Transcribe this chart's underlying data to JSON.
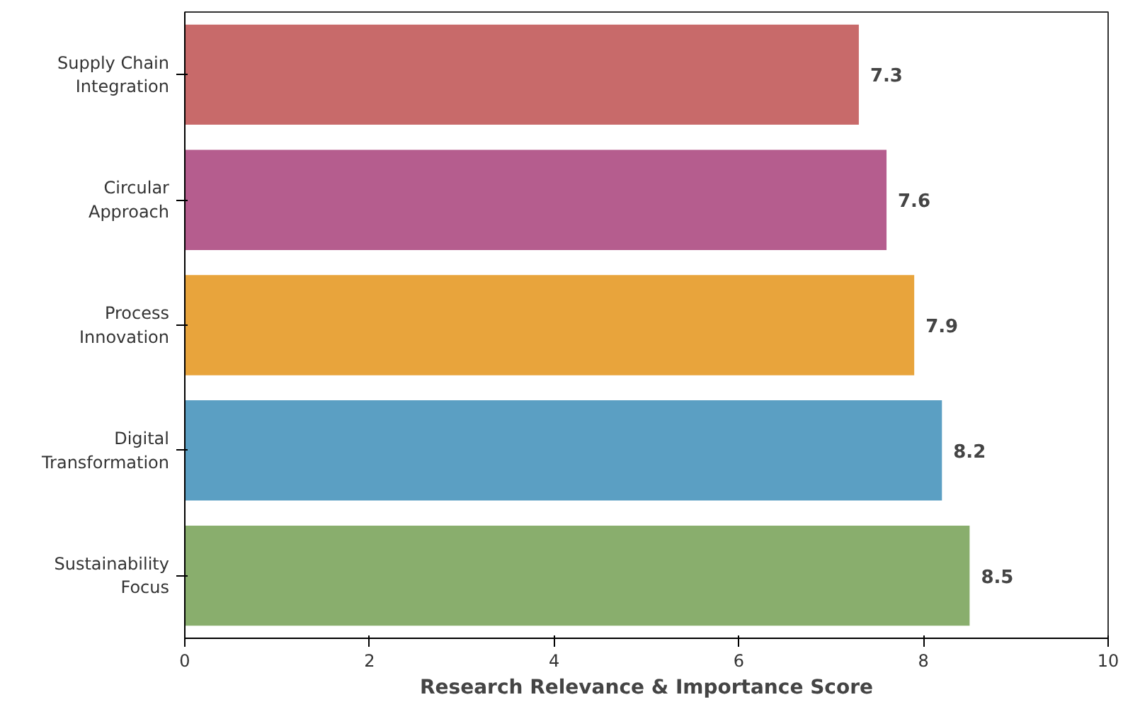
{
  "chart_data": {
    "type": "bar",
    "orientation": "horizontal",
    "xlabel": "Research Relevance & Importance Score",
    "categories": [
      "Supply Chain\nIntegration",
      "Circular\nApproach",
      "Process\nInnovation",
      "Digital\nTransformation",
      "Sustainability\nFocus"
    ],
    "values": [
      7.3,
      7.6,
      7.9,
      8.2,
      8.5
    ],
    "colors": [
      "#c86a6a",
      "#b55d8e",
      "#e8a43c",
      "#5b9fc3",
      "#89ae6d"
    ],
    "xlim": [
      0,
      10
    ],
    "xticks": [
      0,
      2,
      4,
      6,
      8,
      10
    ],
    "data_labels": true,
    "grid": false
  }
}
